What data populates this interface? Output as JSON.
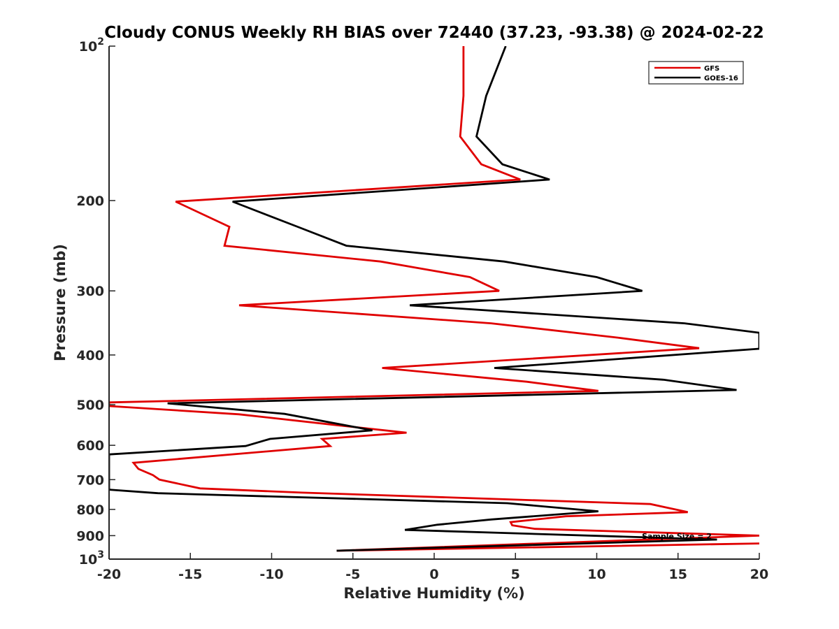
{
  "chart_data": {
    "type": "line",
    "title": "Cloudy CONUS Weekly RH BIAS over 72440 (37.23, -93.38) @ 2024-02-22",
    "xlabel": "Relative Humidity (%)",
    "ylabel": "Pressure (mb)",
    "xlim": [
      -20,
      20
    ],
    "ylim": [
      100,
      1000
    ],
    "yscale": "log",
    "y_reversed": true,
    "grid": false,
    "legend_position": "top-right",
    "x_ticks": [
      "-20",
      "-15",
      "-10",
      "-5",
      "0",
      "5",
      "10",
      "15",
      "20"
    ],
    "y_ticks": [
      {
        "value": 100,
        "base": "10",
        "exp": "2"
      },
      {
        "value": 200,
        "label": "200"
      },
      {
        "value": 300,
        "label": "300"
      },
      {
        "value": 400,
        "label": "400"
      },
      {
        "value": 500,
        "label": "500"
      },
      {
        "value": 600,
        "label": "600"
      },
      {
        "value": 700,
        "label": "700"
      },
      {
        "value": 800,
        "label": "800"
      },
      {
        "value": 900,
        "label": "900"
      },
      {
        "value": 1000,
        "base": "10",
        "exp": "3"
      }
    ],
    "annotation": "Sample Size = 2",
    "series": [
      {
        "name": "GFS",
        "color": "#e00000",
        "points": [
          [
            1.8,
            100
          ],
          [
            1.8,
            125
          ],
          [
            1.6,
            150
          ],
          [
            2.9,
            170
          ],
          [
            5.3,
            182
          ],
          [
            -15.9,
            201
          ],
          [
            -12.6,
            225
          ],
          [
            -12.9,
            245
          ],
          [
            -3.3,
            263
          ],
          [
            2.2,
            282
          ],
          [
            4,
            300
          ],
          [
            -12,
            320
          ],
          [
            3.5,
            347
          ],
          [
            11.3,
            370
          ],
          [
            16.3,
            388
          ],
          [
            -3.2,
            424
          ],
          [
            5.7,
            451
          ],
          [
            10.1,
            470
          ],
          [
            -20,
            495
          ],
          [
            -20,
            503
          ],
          [
            -12,
            522
          ],
          [
            -6,
            548
          ],
          [
            -1.7,
            567
          ],
          [
            -6.9,
            583
          ],
          [
            -6.4,
            602
          ],
          [
            -18.5,
            649
          ],
          [
            -18.2,
            667
          ],
          [
            -17.3,
            686
          ],
          [
            -16.9,
            700
          ],
          [
            -14.4,
            728
          ],
          [
            -8.1,
            742
          ],
          [
            13.3,
            781
          ],
          [
            14.2,
            792
          ],
          [
            15.6,
            810
          ],
          [
            8.1,
            825
          ],
          [
            4.7,
            847
          ],
          [
            4.8,
            859
          ],
          [
            6.2,
            873
          ],
          [
            20,
            900
          ],
          [
            -6,
            963
          ],
          [
            20,
            932
          ]
        ]
      },
      {
        "name": "GOES-16",
        "color": "#000000",
        "points": [
          [
            4.4,
            100
          ],
          [
            3.2,
            125
          ],
          [
            2.6,
            150
          ],
          [
            4.2,
            170
          ],
          [
            7.1,
            182
          ],
          [
            -12.4,
            201
          ],
          [
            -8.4,
            225
          ],
          [
            -5.4,
            245
          ],
          [
            4.3,
            263
          ],
          [
            10,
            282
          ],
          [
            12.8,
            300
          ],
          [
            -1.5,
            320
          ],
          [
            15.4,
            347
          ],
          [
            20,
            362
          ],
          [
            20,
            389
          ],
          [
            3.7,
            424
          ],
          [
            14.1,
            447
          ],
          [
            18.6,
            468
          ],
          [
            -16.4,
            497
          ],
          [
            -9.2,
            521
          ],
          [
            -3.8,
            561
          ],
          [
            -10.1,
            583
          ],
          [
            -11.6,
            602
          ],
          [
            -20,
            625
          ],
          [
            -20,
            732
          ],
          [
            -17,
            744
          ],
          [
            4.5,
            778
          ],
          [
            10.1,
            807
          ],
          [
            3.5,
            837
          ],
          [
            0.2,
            857
          ],
          [
            -1.8,
            877
          ],
          [
            17.4,
            916
          ],
          [
            -6,
            963
          ]
        ]
      }
    ]
  }
}
